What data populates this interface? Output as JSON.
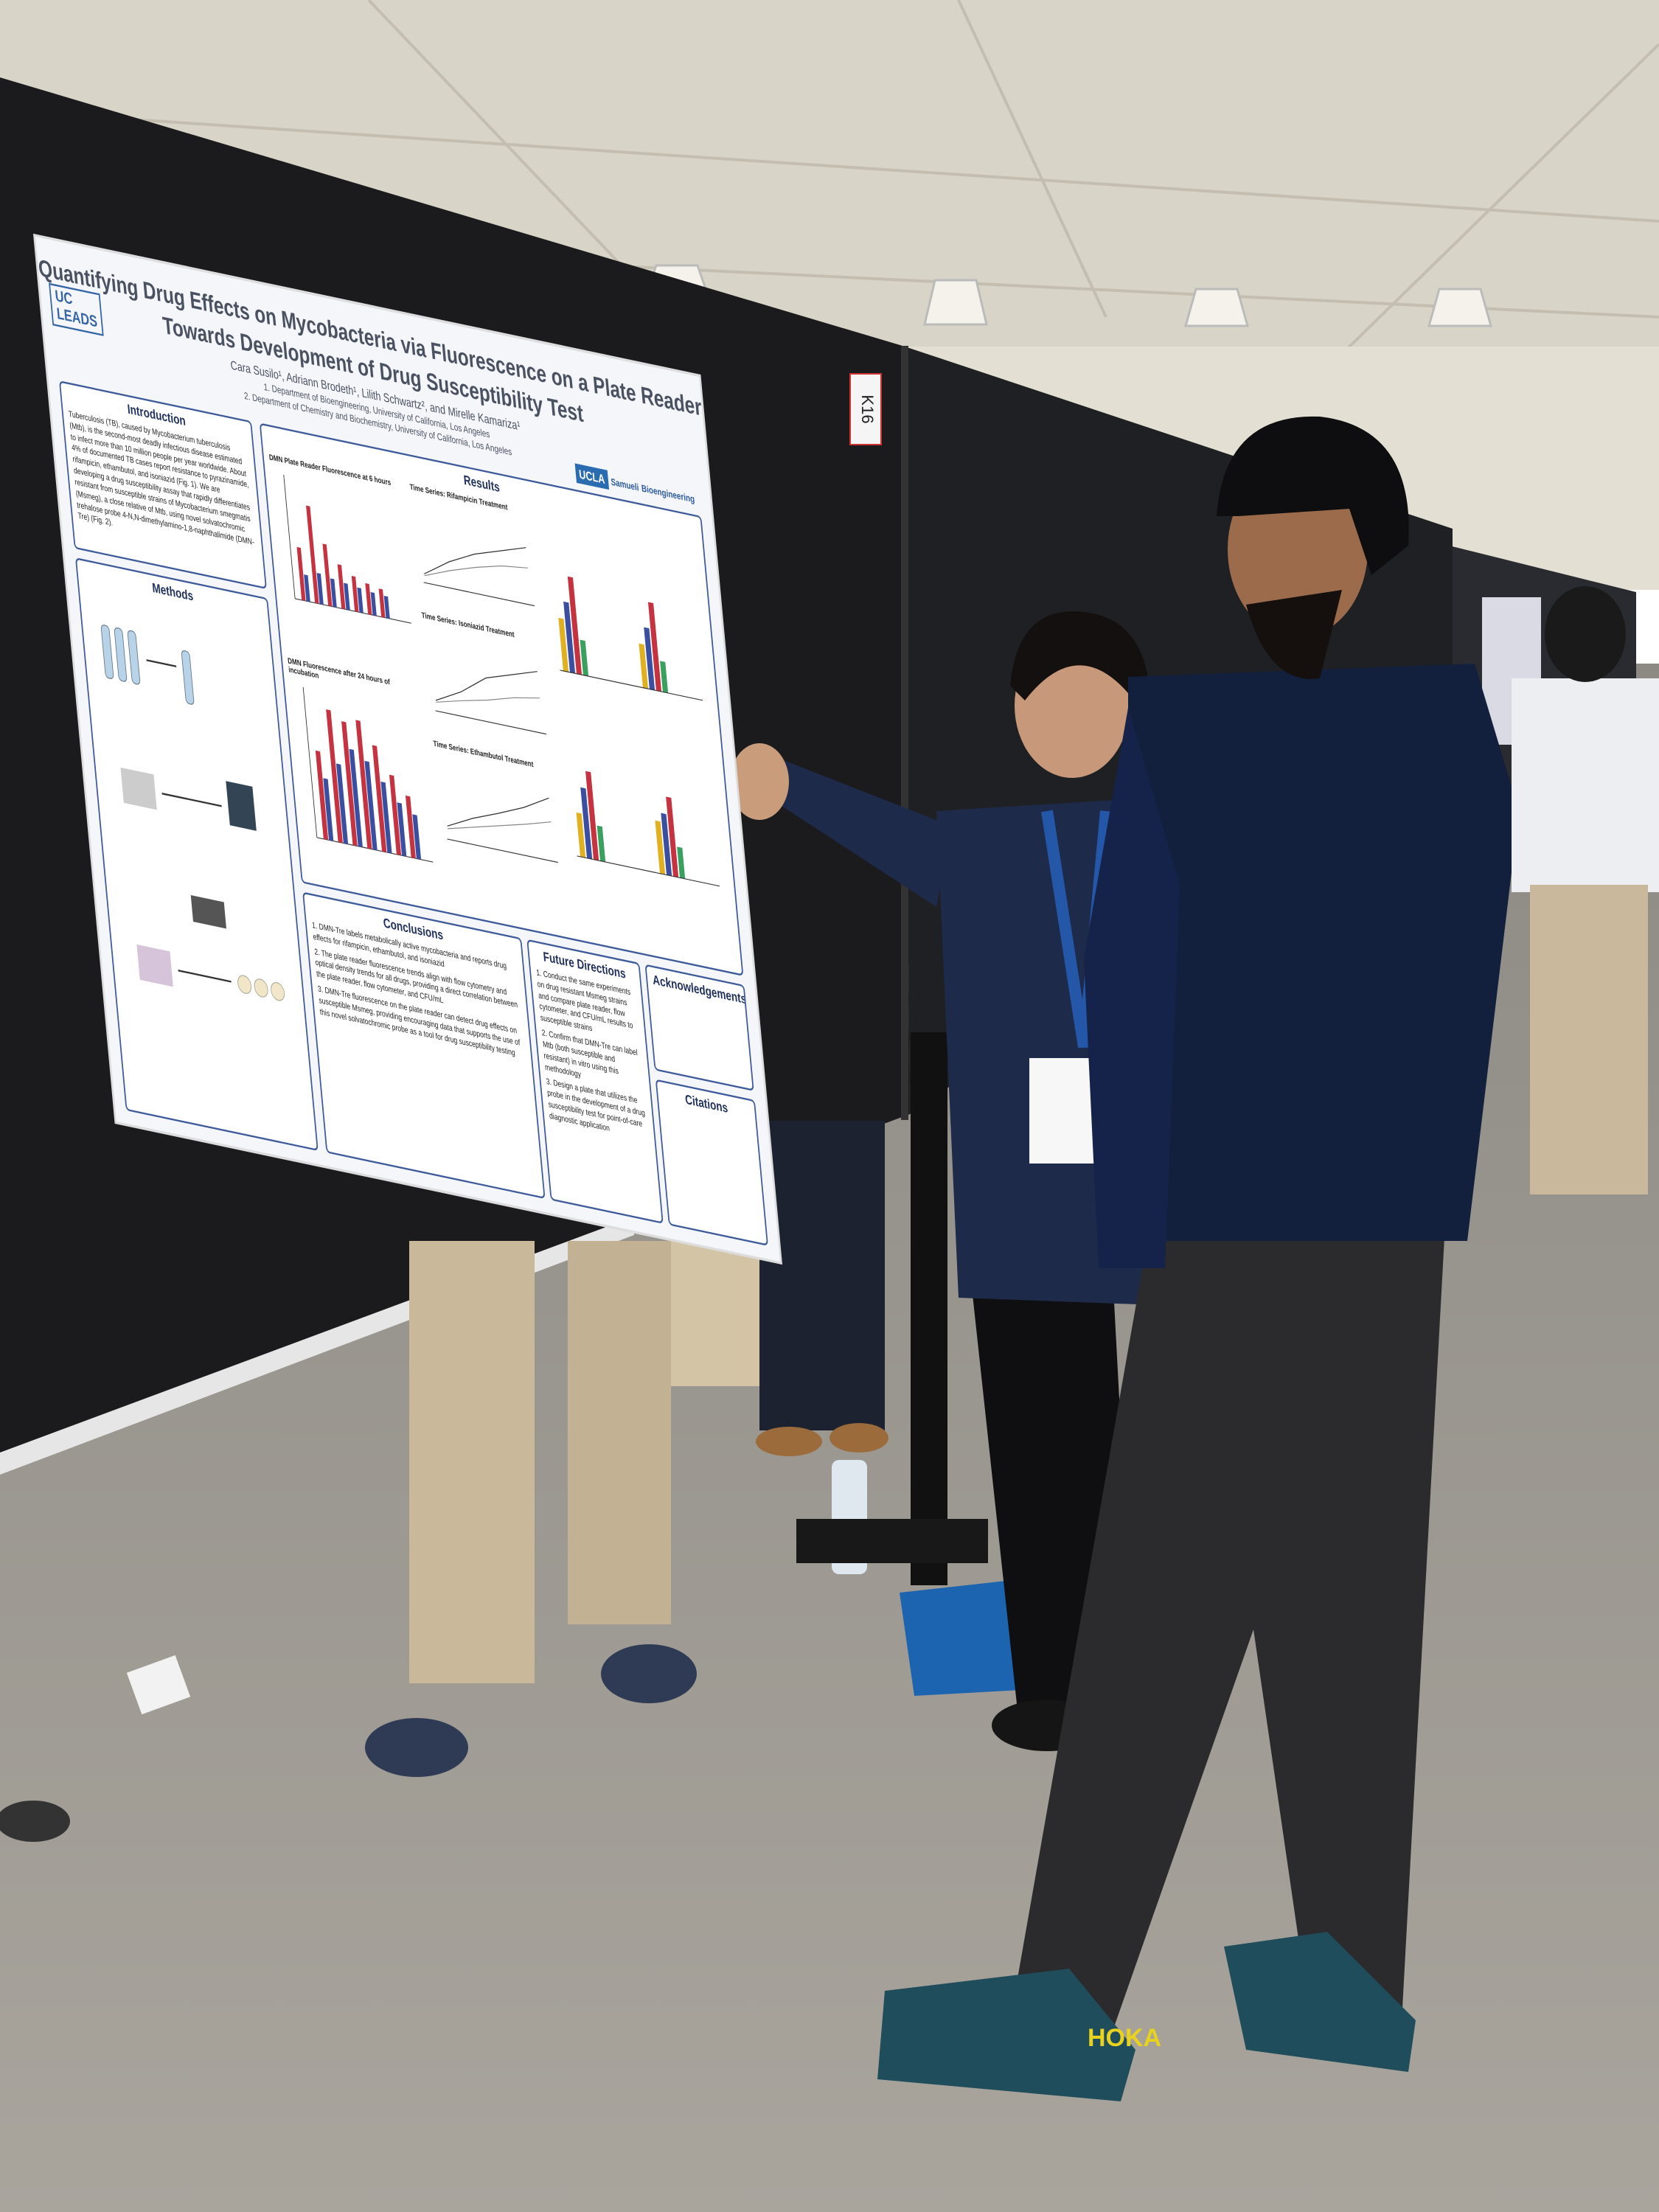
{
  "poster": {
    "title": [
      "Quantifying Drug Effects on Mycobacteria via Fluorescence on a Plate Reader",
      "Towards Development of Drug Susceptibility Test"
    ],
    "authors": "Cara Susilo¹, Adriann Brodeth¹, Lilith Schwartz², and Mirelle Kamariza¹",
    "affiliations": [
      "1. Department of Bioengineering, University of California, Los Angeles",
      "2. Department of Chemistry and Biochemistry, University of California, Los Angeles"
    ],
    "logo_left": [
      "UC",
      "LEADS"
    ],
    "logo_right": [
      "UCLA",
      "Samueli",
      "Bioengineering"
    ],
    "sections": {
      "introduction": {
        "heading": "Introduction",
        "text": "Tuberculosis (TB), caused by Mycobacterium tuberculosis (Mtb), is the second-most deadly infectious disease estimated to infect more than 10 million people per year worldwide. About 4% of documented TB cases report resistance to pyrazinamide, rifampicin, ethambutol, and isoniazid (Fig. 1). We are developing a drug susceptibility assay that rapidly differentiates resistant from susceptible strains of Mycobacterium smegmatis (Msmeg), a close relative of Mtb, using novel solvatochromic trehalose probe 4-N,N-dimethylamino-1,8-naphthalimide (DMN-Tre) (Fig. 2)."
      },
      "methods": {
        "heading": "Methods"
      },
      "results": {
        "heading": "Results",
        "panels": [
          "DMN Plate Reader Fluorescence at 6 hours",
          "DMN Fluorescence after 24 hours of incubation",
          "Time Series: Rifampicin Treatment",
          "Time Series: Isoniazid Treatment",
          "Time Series: Ethambutol Treatment"
        ]
      },
      "conclusions": {
        "heading": "Conclusions",
        "items": [
          "1. DMN-Tre labels metabolically active mycobacteria and reports drug effects for rifampicin, ethambutol, and isoniazid",
          "2. The plate reader fluorescence trends align with flow cytometry and optical density trends for all drugs, providing a direct correlation between the plate reader, flow cytometer, and CFU/mL",
          "3. DMN-Tre fluorescence on the plate reader can detect drug effects on susceptible Msmeg, providing encouraging data that supports the use of this novel solvatochromic probe as a tool for drug susceptibility testing"
        ]
      },
      "future_directions": {
        "heading": "Future Directions",
        "items": [
          "1. Conduct the same experiments on drug resistant Msmeg strains and compare plate reader, flow cytometer, and CFU/mL results to susceptible strains",
          "2. Confirm that DMN-Tre can label Mtb (both susceptible and resistant) in vitro using this methodology",
          "3. Design a plate that utilizes the probe in the development of a drug susceptibility test for point-of-care diagnostic application"
        ]
      },
      "acknowledgements": {
        "heading": "Acknowledgements"
      },
      "citations": {
        "heading": "Citations"
      }
    }
  },
  "booth_label": "K16",
  "shoe_brand": "HOKA"
}
